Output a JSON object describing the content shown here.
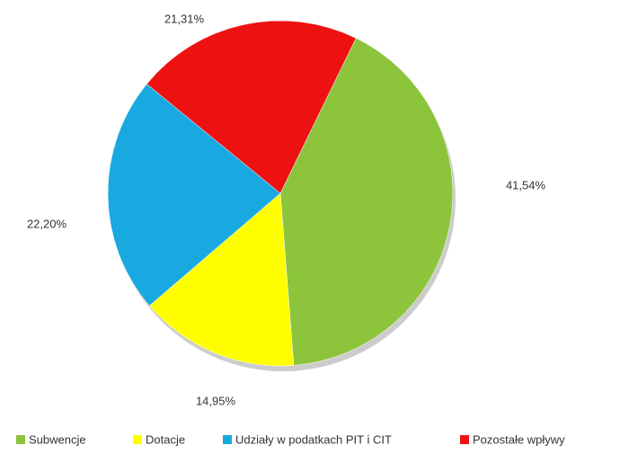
{
  "chart_data": {
    "type": "pie",
    "categories": [
      "Subwencje",
      "Dotacje",
      "Udziały w podatkach PIT i CIT",
      "Pozostałe wpływy"
    ],
    "values": [
      41.54,
      14.95,
      22.2,
      21.31
    ],
    "value_labels": [
      "41,54%",
      "14,95%",
      "22,20%",
      "21,31%"
    ],
    "colors": [
      "#8cc43c",
      "#ffff00",
      "#19a9e1",
      "#ee1111"
    ],
    "legend": "bottom"
  }
}
